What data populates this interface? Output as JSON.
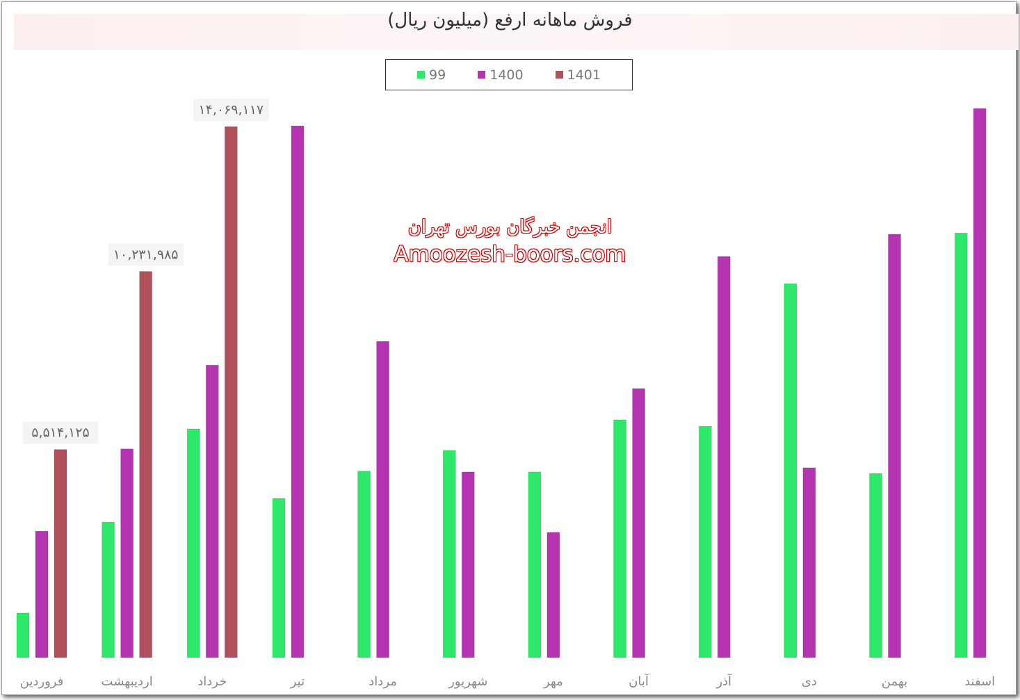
{
  "chart_data": {
    "type": "bar",
    "title": "فروش ماهانه ارفع (میلیون ریال)",
    "categories": [
      "فروردین",
      "اردیبهشت",
      "خرداد",
      "تیر",
      "مرداد",
      "شهریور",
      "مهر",
      "آبان",
      "آذر",
      "دی",
      "بهمن",
      "اسفند"
    ],
    "series": [
      {
        "name": "99",
        "color": "#2ee86a",
        "values": [
          1180000,
          3590000,
          6060000,
          4220000,
          4940000,
          5490000,
          4920000,
          6300000,
          6130000,
          9910000,
          4880000,
          11250000
        ]
      },
      {
        "name": "1400",
        "color": "#b535b0",
        "values": [
          3350000,
          5530000,
          7750000,
          14090000,
          8380000,
          4920000,
          3320000,
          7130000,
          10630000,
          5030000,
          11220000,
          14550000
        ]
      },
      {
        "name": "1401",
        "color": "#b0505a",
        "values": [
          5514125,
          10231985,
          14069117,
          null,
          null,
          null,
          null,
          null,
          null,
          null,
          null,
          null
        ]
      }
    ],
    "data_labels": [
      {
        "series": "1401",
        "category": "فروردین",
        "text": "۵,۵۱۴,۱۲۵"
      },
      {
        "series": "1401",
        "category": "اردیبهشت",
        "text": "۱۰,۲۳۱,۹۸۵"
      },
      {
        "series": "1401",
        "category": "خرداد",
        "text": "۱۴,۰۶۹,۱۱۷"
      }
    ],
    "ylim": [
      0,
      15000000
    ],
    "grid": false,
    "yaxis_visible": false,
    "legend_position": "top"
  },
  "watermark": {
    "line1": "انجمن خبرگان بورس تهران",
    "line2": "Amoozesh-boors.com"
  }
}
